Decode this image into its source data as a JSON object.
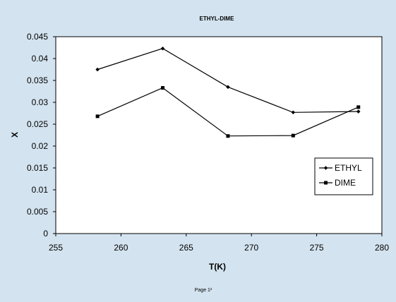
{
  "page_footer": "Page 1²",
  "colors": {
    "background": "#d3e3ef",
    "plot_area": "#ffffff",
    "series_line": "#000000"
  },
  "chart_data": {
    "type": "line",
    "title": "ETHYL-DIME",
    "xlabel": "T(K)",
    "ylabel": "X",
    "xlim": [
      255,
      280
    ],
    "ylim": [
      0,
      0.045
    ],
    "xticks": [
      "255",
      "260",
      "265",
      "270",
      "275",
      "280"
    ],
    "yticks": [
      "0",
      "0.005",
      "0.01",
      "0.015",
      "0.02",
      "0.025",
      "0.03",
      "0.035",
      "0.04",
      "0.045"
    ],
    "grid": false,
    "legend_position": "right",
    "x": [
      258.2,
      263.2,
      268.2,
      273.2,
      278.2
    ],
    "series": [
      {
        "name": "ETHYL",
        "marker": "diamond",
        "values": [
          0.0375,
          0.0423,
          0.0335,
          0.0277,
          0.0279
        ]
      },
      {
        "name": "DIME",
        "marker": "square",
        "values": [
          0.0268,
          0.0333,
          0.0223,
          0.0224,
          0.0289
        ]
      }
    ]
  }
}
